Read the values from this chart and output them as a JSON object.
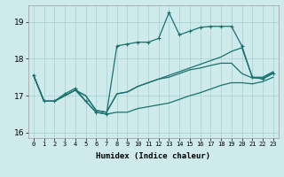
{
  "xlabel": "Humidex (Indice chaleur)",
  "background_color": "#ceeaea",
  "grid_color": "#add4d4",
  "line_color": "#1a7070",
  "xlim": [
    -0.5,
    23.5
  ],
  "ylim": [
    15.85,
    19.45
  ],
  "yticks": [
    16,
    17,
    18,
    19
  ],
  "xtick_labels": [
    "0",
    "1",
    "2",
    "3",
    "4",
    "5",
    "6",
    "7",
    "8",
    "9",
    "10",
    "11",
    "12",
    "13",
    "14",
    "15",
    "16",
    "17",
    "18",
    "19",
    "20",
    "21",
    "22",
    "23"
  ],
  "series": [
    {
      "y": [
        17.55,
        16.85,
        16.85,
        17.05,
        17.2,
        16.85,
        16.55,
        16.5,
        18.35,
        18.4,
        18.45,
        18.45,
        18.55,
        19.25,
        18.65,
        18.75,
        18.85,
        18.88,
        18.88,
        18.88,
        18.35,
        17.5,
        17.45,
        17.6
      ],
      "marker": true
    },
    {
      "y": [
        17.55,
        16.85,
        16.85,
        17.0,
        17.15,
        17.0,
        16.6,
        16.55,
        17.05,
        17.1,
        17.25,
        17.35,
        17.45,
        17.55,
        17.65,
        17.75,
        17.85,
        17.95,
        18.05,
        18.2,
        18.3,
        17.5,
        17.5,
        17.65
      ],
      "marker": false
    },
    {
      "y": [
        17.55,
        16.85,
        16.85,
        17.0,
        17.15,
        17.0,
        16.6,
        16.55,
        17.05,
        17.1,
        17.25,
        17.35,
        17.45,
        17.5,
        17.6,
        17.7,
        17.75,
        17.82,
        17.88,
        17.88,
        17.6,
        17.48,
        17.48,
        17.62
      ],
      "marker": false
    },
    {
      "y": [
        17.55,
        16.85,
        16.85,
        17.0,
        17.15,
        16.85,
        16.55,
        16.5,
        16.55,
        16.55,
        16.65,
        16.7,
        16.75,
        16.8,
        16.9,
        17.0,
        17.08,
        17.18,
        17.28,
        17.35,
        17.35,
        17.32,
        17.38,
        17.5
      ],
      "marker": false
    }
  ],
  "xlabel_fontsize": 6.5,
  "xtick_fontsize": 5.0,
  "ytick_fontsize": 6.5
}
